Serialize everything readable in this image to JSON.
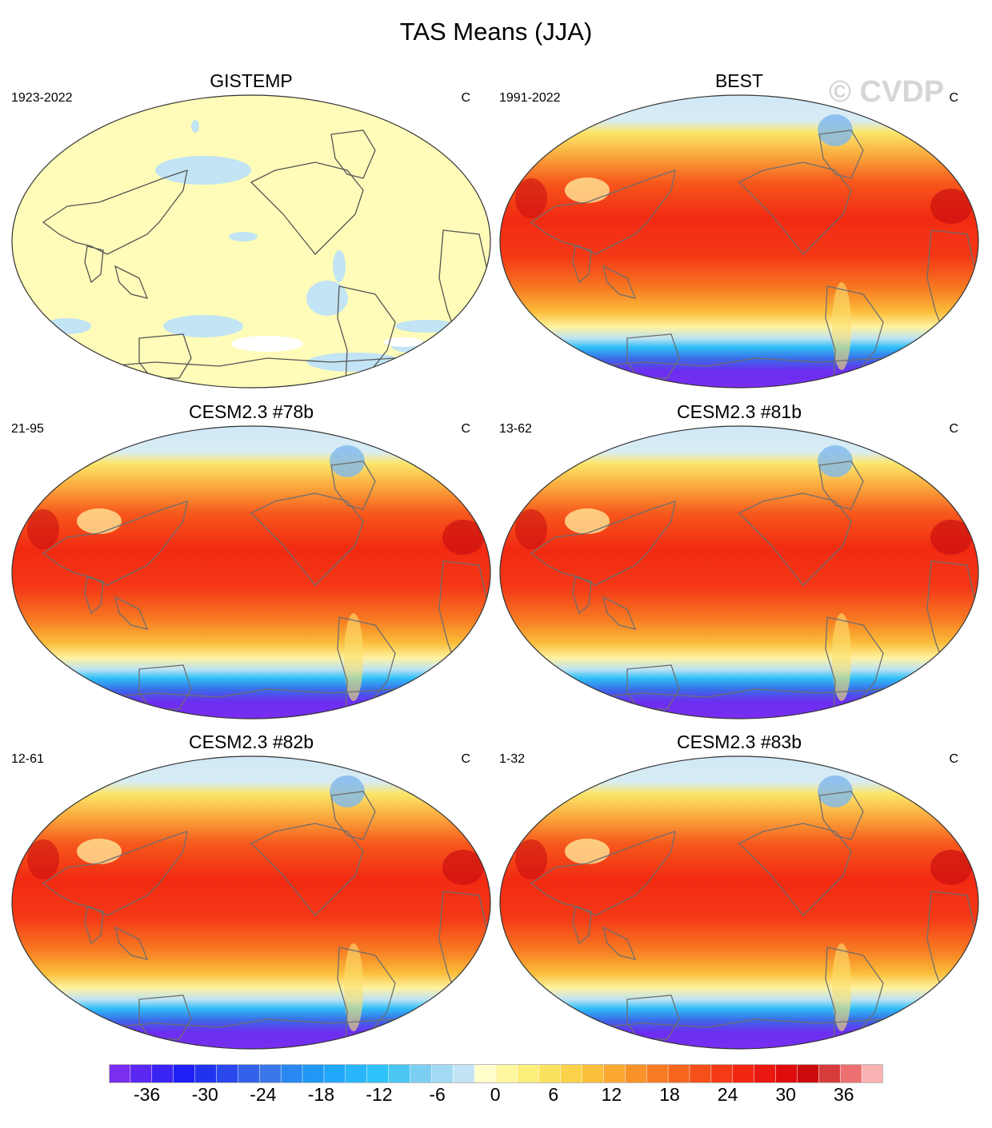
{
  "title": "TAS Means (JJA)",
  "watermark": "© CVDP",
  "units": "C",
  "panels": [
    {
      "name": "GISTEMP",
      "period": "1923-2022",
      "style": "anomaly"
    },
    {
      "name": "BEST",
      "period": "1991-2022",
      "style": "absolute"
    },
    {
      "name": "CESM2.3 #78b",
      "period": "21-95",
      "style": "absolute"
    },
    {
      "name": "CESM2.3 #81b",
      "period": "13-62",
      "style": "absolute"
    },
    {
      "name": "CESM2.3 #82b",
      "period": "12-61",
      "style": "absolute"
    },
    {
      "name": "CESM2.3 #83b",
      "period": "1-32",
      "style": "absolute"
    }
  ],
  "colorbar": {
    "colors": [
      "#7a2ef0",
      "#5a28f2",
      "#3a24f4",
      "#1f1ff6",
      "#2233ee",
      "#2a48ec",
      "#3361ea",
      "#3a78ea",
      "#2a88f2",
      "#1f98f6",
      "#22a8fa",
      "#2ab6fa",
      "#2fc2fa",
      "#4ac6f2",
      "#7ccff2",
      "#a2daf4",
      "#c2e4f4",
      "#ffffcc",
      "#fff7a0",
      "#fcee7a",
      "#fbe25e",
      "#fbd24a",
      "#fbbe3a",
      "#faa830",
      "#f99228",
      "#f87c22",
      "#f7661e",
      "#f6501a",
      "#f43a16",
      "#f22612",
      "#e91810",
      "#de0c0c",
      "#cc0c0c",
      "#d63c3c",
      "#ec7070",
      "#fbb2b2"
    ],
    "labels": [
      "-36",
      "-30",
      "-24",
      "-18",
      "-12",
      "-6",
      "0",
      "6",
      "12",
      "18",
      "24",
      "30",
      "36"
    ],
    "label_values": [
      -36,
      -30,
      -24,
      -18,
      -12,
      -6,
      0,
      6,
      12,
      18,
      24,
      30,
      36
    ],
    "min": -40,
    "max": 40
  }
}
